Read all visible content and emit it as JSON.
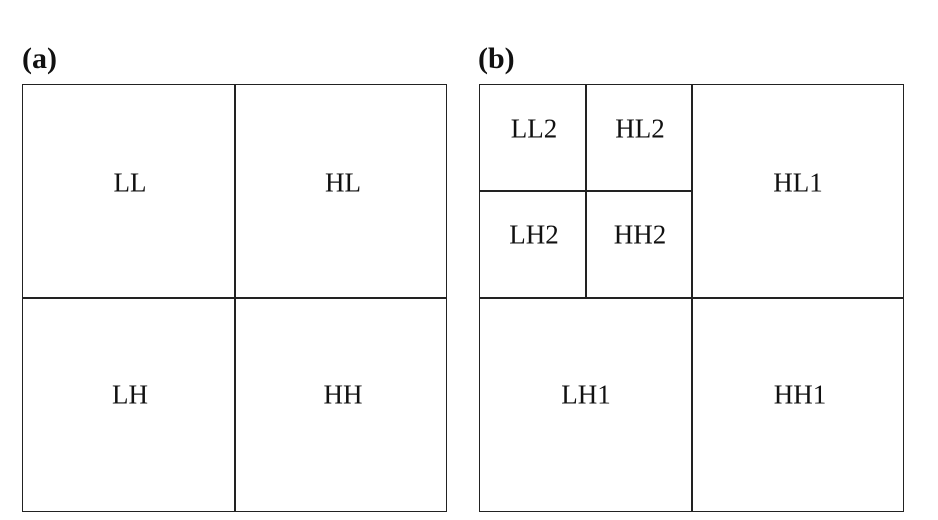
{
  "panel_a": {
    "label": "(a)",
    "subbands": [
      "LL",
      "HL",
      "LH",
      "HH"
    ]
  },
  "panel_b": {
    "label": "(b)",
    "level2": [
      "LL2",
      "HL2",
      "LH2",
      "HH2"
    ],
    "level1": [
      "HL1",
      "LH1",
      "HH1"
    ]
  }
}
